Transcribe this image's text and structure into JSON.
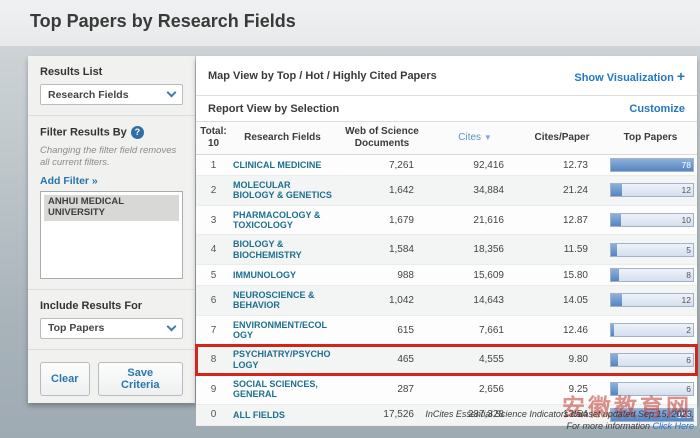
{
  "page": {
    "title": "Top Papers by Research Fields"
  },
  "colors": {
    "accent_blue": "#2178be",
    "field_link_teal": "#1d6f8e",
    "highlight_red": "#d2251c",
    "bar_fill_blue": "#5585c4",
    "bar_track_blue": "#dde8f5"
  },
  "sidebar": {
    "results_list": {
      "label": "Results List",
      "selected": "Research Fields"
    },
    "filter": {
      "label": "Filter Results By",
      "help_icon": "question-mark-icon",
      "note": "Changing the filter field removes all current filters.",
      "add_filter_label": "Add Filter »",
      "listbox_items": [
        {
          "label": "ANHUI MEDICAL UNIVERSITY",
          "selected": true
        }
      ]
    },
    "include_results": {
      "label": "Include Results For",
      "selected": "Top Papers"
    },
    "buttons": {
      "clear": "Clear",
      "save": "Save Criteria"
    }
  },
  "main": {
    "map_view": {
      "title": "Map View by Top / Hot / Highly Cited Papers",
      "action": "Show Visualization",
      "action_icon": "+"
    },
    "report_view": {
      "title": "Report View by Selection",
      "action": "Customize"
    }
  },
  "table": {
    "total_label": "Total:",
    "total_value": "10",
    "headers": {
      "field": "Research Fields",
      "docs": "Web of Science Documents",
      "cites": "Cites",
      "cites_sort_arrow": "▼",
      "cites_per_paper": "Cites/Paper",
      "top_papers": "Top Papers"
    },
    "rows": [
      {
        "rank": "1",
        "field": "CLINICAL MEDICINE",
        "docs": "7,261",
        "cites": "92,416",
        "cpp": "12.73",
        "top": "78",
        "bar_pct": 100,
        "highlighted": false
      },
      {
        "rank": "2",
        "field": "MOLECULAR BIOLOGY & GENETICS",
        "docs": "1,642",
        "cites": "34,884",
        "cpp": "21.24",
        "top": "12",
        "bar_pct": 13,
        "highlighted": false
      },
      {
        "rank": "3",
        "field": "PHARMACOLOGY & TOXICOLOGY",
        "docs": "1,679",
        "cites": "21,616",
        "cpp": "12.87",
        "top": "10",
        "bar_pct": 12,
        "highlighted": false
      },
      {
        "rank": "4",
        "field": "BIOLOGY & BIOCHEMISTRY",
        "docs": "1,584",
        "cites": "18,356",
        "cpp": "11.59",
        "top": "5",
        "bar_pct": 7,
        "highlighted": false
      },
      {
        "rank": "5",
        "field": "IMMUNOLOGY",
        "docs": "988",
        "cites": "15,609",
        "cpp": "15.80",
        "top": "8",
        "bar_pct": 10,
        "highlighted": false
      },
      {
        "rank": "6",
        "field": "NEUROSCIENCE & BEHAVIOR",
        "docs": "1,042",
        "cites": "14,643",
        "cpp": "14.05",
        "top": "12",
        "bar_pct": 14,
        "highlighted": false
      },
      {
        "rank": "7",
        "field": "ENVIRONMENT/ECOLOGY",
        "docs": "615",
        "cites": "7,661",
        "cpp": "12.46",
        "top": "2",
        "bar_pct": 4,
        "highlighted": false
      },
      {
        "rank": "8",
        "field": "PSYCHIATRY/PSYCHOLOGY",
        "docs": "465",
        "cites": "4,555",
        "cpp": "9.80",
        "top": "6",
        "bar_pct": 9,
        "highlighted": true
      },
      {
        "rank": "9",
        "field": "SOCIAL SCIENCES, GENERAL",
        "docs": "287",
        "cites": "2,656",
        "cpp": "9.25",
        "top": "6",
        "bar_pct": 8,
        "highlighted": false
      },
      {
        "rank": "0",
        "field": "ALL FIELDS",
        "docs": "17,526",
        "cites": "237,328",
        "cpp": "13.54",
        "top": "158",
        "bar_pct": 100,
        "highlighted": false
      }
    ]
  },
  "chart_data": {
    "type": "bar",
    "title": "Top Papers",
    "categories": [
      "CLINICAL MEDICINE",
      "MOLECULAR BIOLOGY & GENETICS",
      "PHARMACOLOGY & TOXICOLOGY",
      "BIOLOGY & BIOCHEMISTRY",
      "IMMUNOLOGY",
      "NEUROSCIENCE & BEHAVIOR",
      "ENVIRONMENT/ECOLOGY",
      "PSYCHIATRY/PSYCHOLOGY",
      "SOCIAL SCIENCES, GENERAL",
      "ALL FIELDS"
    ],
    "values": [
      78,
      12,
      10,
      5,
      8,
      12,
      2,
      6,
      6,
      158
    ]
  },
  "footer": {
    "line1": "InCites Essential Science Indicators dataset updated Sep 15, 2023.",
    "line2_prefix": "For more information ",
    "link": "Click Here"
  },
  "watermark": "安徽教育网"
}
